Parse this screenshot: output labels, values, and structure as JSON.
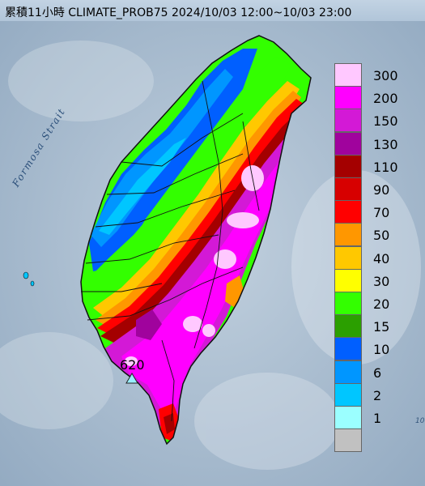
{
  "title": "累積11小時 CLIMATE_PROB75 2024/10/03 12:00~10/03 23:00",
  "map": {
    "sea_label": "Formosa Strait",
    "max_marker_label": "620",
    "edge_label": "10"
  },
  "legend": {
    "items": [
      {
        "label": "300",
        "color": "#ffc8ff"
      },
      {
        "label": "200",
        "color": "#ff00ff"
      },
      {
        "label": "150",
        "color": "#d319d6"
      },
      {
        "label": "130",
        "color": "#a0039d"
      },
      {
        "label": "110",
        "color": "#a40000"
      },
      {
        "label": "90",
        "color": "#d70000"
      },
      {
        "label": "70",
        "color": "#ff0000"
      },
      {
        "label": "50",
        "color": "#ff9700"
      },
      {
        "label": "40",
        "color": "#ffc800"
      },
      {
        "label": "30",
        "color": "#ffff00"
      },
      {
        "label": "20",
        "color": "#33ff00"
      },
      {
        "label": "15",
        "color": "#2b9f00"
      },
      {
        "label": "10",
        "color": "#005fff"
      },
      {
        "label": "6",
        "color": "#0096ff"
      },
      {
        "label": "2",
        "color": "#00c6ff"
      },
      {
        "label": "1",
        "color": "#9bffff"
      },
      {
        "label": "",
        "color": "#c1c1c1"
      }
    ]
  }
}
